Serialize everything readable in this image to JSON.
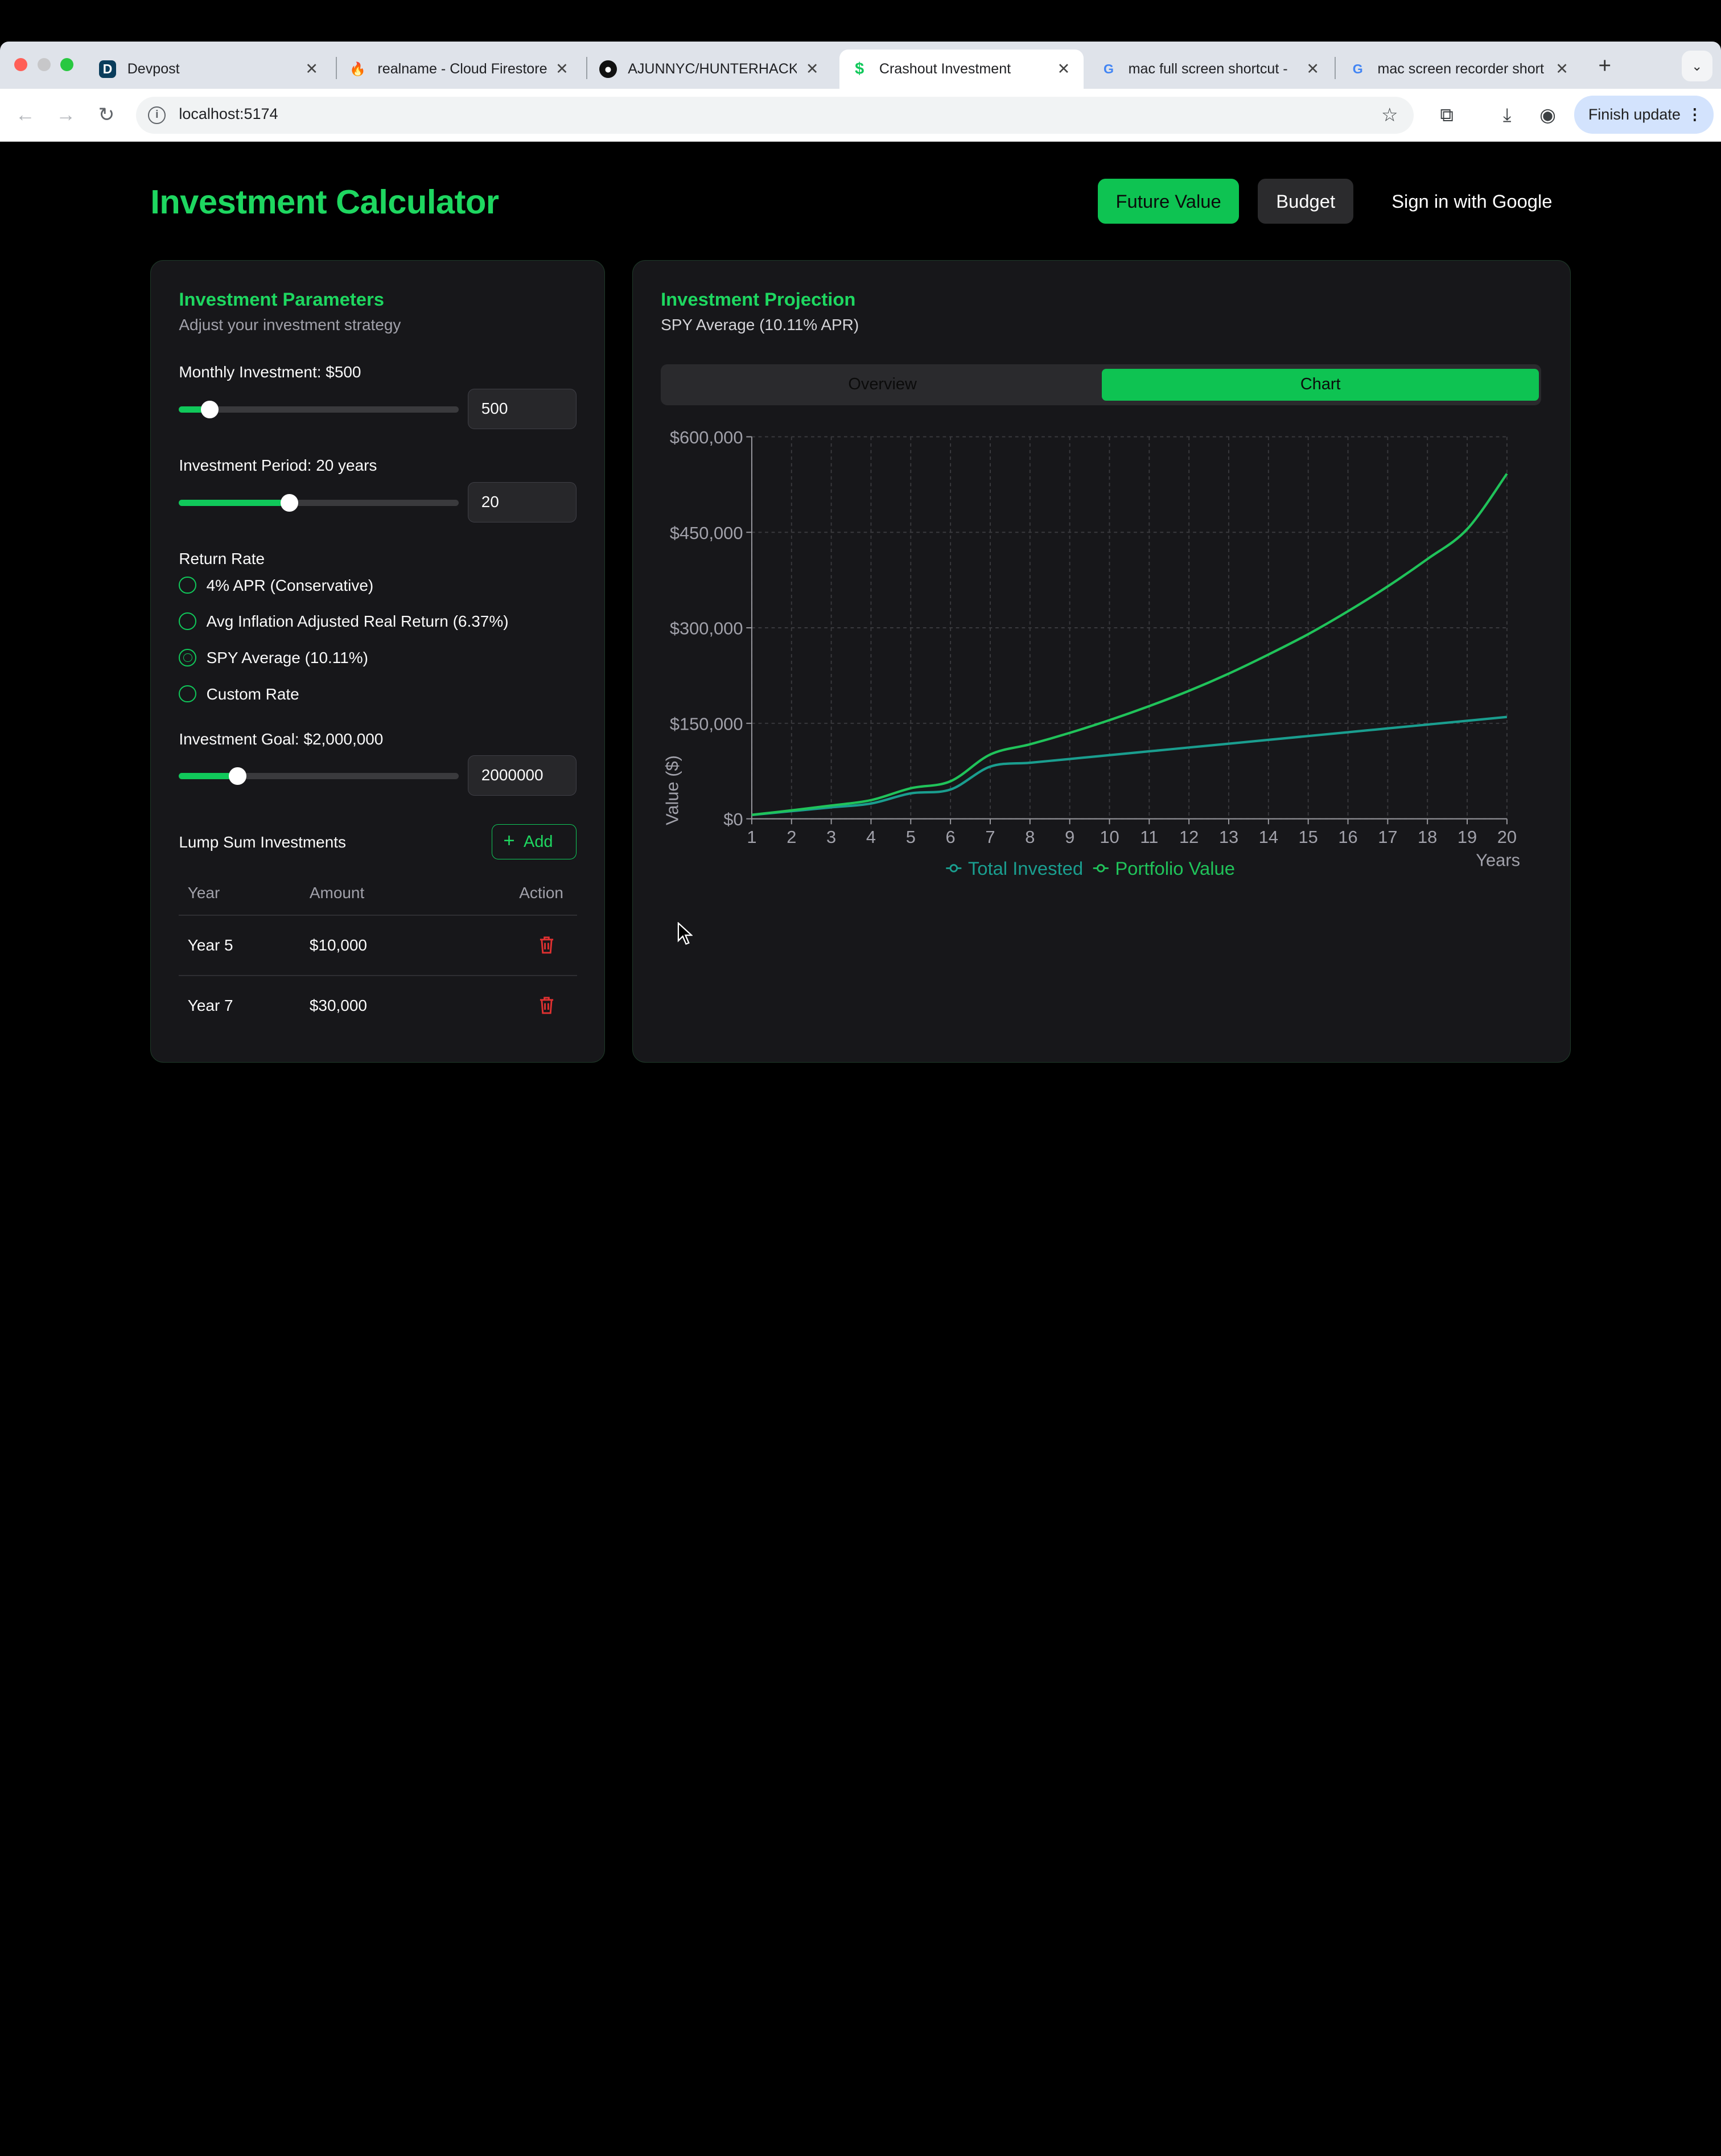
{
  "browser": {
    "tabs": [
      {
        "title": "Devpost",
        "icon": "devpost-icon",
        "active": false
      },
      {
        "title": "realname - Cloud Firestore",
        "icon": "firebase-icon",
        "active": false
      },
      {
        "title": "AJUNNYC/HUNTERHACKF",
        "icon": "github-icon",
        "active": false
      },
      {
        "title": "Crashout Investment",
        "icon": "dollar-icon",
        "active": true
      },
      {
        "title": "mac full screen shortcut -",
        "icon": "google-icon",
        "active": false
      },
      {
        "title": "mac screen recorder short",
        "icon": "google-icon",
        "active": false
      }
    ],
    "url": "localhost:5174",
    "finish_update": "Finish update",
    "colors": {
      "tabstrip": "#dfe3ea",
      "finish_bg": "#d3e3fd"
    }
  },
  "header": {
    "title": "Investment Calculator",
    "nav": {
      "future_value": "Future Value",
      "budget": "Budget",
      "sign_in": "Sign in with Google"
    }
  },
  "params": {
    "title": "Investment Parameters",
    "subtitle": "Adjust your investment strategy",
    "monthly": {
      "label": "Monthly Investment: $500",
      "value": "500",
      "fraction": 0.11
    },
    "period": {
      "label": "Investment Period: 20 years",
      "value": "20",
      "fraction": 0.395
    },
    "return_rate": {
      "label": "Return Rate",
      "options": [
        {
          "label": "4% APR (Conservative)",
          "selected": false
        },
        {
          "label": "Avg Inflation Adjusted Real Return (6.37%)",
          "selected": false
        },
        {
          "label": "SPY Average (10.11%)",
          "selected": true
        },
        {
          "label": "Custom Rate",
          "selected": false
        }
      ]
    },
    "goal": {
      "label": "Investment Goal: $2,000,000",
      "value": "2000000",
      "fraction": 0.21
    },
    "lump": {
      "title": "Lump Sum Investments",
      "add_label": "Add",
      "columns": [
        "Year",
        "Amount",
        "Action"
      ],
      "rows": [
        {
          "year": "Year 5",
          "amount": "$10,000"
        },
        {
          "year": "Year 7",
          "amount": "$30,000"
        }
      ]
    }
  },
  "projection": {
    "title": "Investment Projection",
    "subtitle": "SPY Average (10.11% APR)",
    "tabs": {
      "overview": "Overview",
      "chart": "Chart"
    }
  },
  "colors": {
    "accent": "#1ed760",
    "button": "#0ec352",
    "card": "#17171a",
    "invested": "#1a9e8f",
    "portfolio": "#20c35a",
    "danger": "#e03131"
  },
  "chart_data": {
    "type": "line",
    "xlabel": "Years",
    "ylabel": "Value ($)",
    "x": [
      1,
      2,
      3,
      4,
      5,
      6,
      7,
      8,
      9,
      10,
      11,
      12,
      13,
      14,
      15,
      16,
      17,
      18,
      19,
      20
    ],
    "ylim": [
      0,
      600000
    ],
    "yticks": [
      "$0",
      "$150,000",
      "$300,000",
      "$450,000",
      "$600,000"
    ],
    "ytick_values": [
      0,
      150000,
      300000,
      450000,
      600000
    ],
    "grid": true,
    "legend_position": "bottom",
    "series": [
      {
        "name": "Total Invested",
        "color": "#1a9e8f",
        "values": [
          6000,
          12000,
          18000,
          24000,
          40000,
          46000,
          82000,
          88000,
          94000,
          100000,
          106000,
          112000,
          118000,
          124000,
          130000,
          136000,
          142000,
          148000,
          154000,
          160000
        ]
      },
      {
        "name": "Portfolio Value",
        "color": "#20c35a",
        "values": [
          6300,
          13300,
          20900,
          29300,
          48000,
          59000,
          101000,
          117000,
          135000,
          155000,
          177000,
          201000,
          228000,
          258000,
          290000,
          326000,
          365000,
          408000,
          455000,
          542000
        ]
      }
    ]
  }
}
